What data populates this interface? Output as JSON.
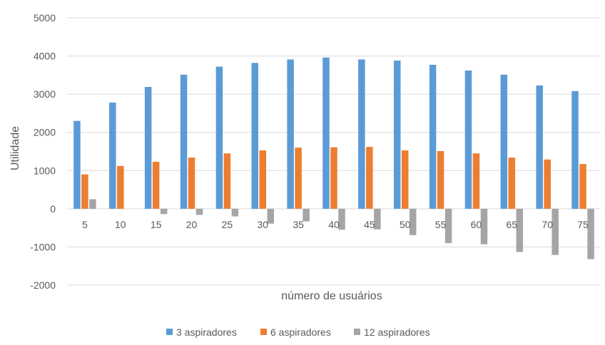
{
  "chart_data": {
    "type": "bar",
    "title": "",
    "xlabel": "número de usuários",
    "ylabel": "Utilidade",
    "categories": [
      "5",
      "10",
      "15",
      "20",
      "25",
      "30",
      "35",
      "40",
      "45",
      "50",
      "55",
      "60",
      "65",
      "70",
      "75"
    ],
    "series": [
      {
        "name": "3 aspiradores",
        "color": "#5b9bd5",
        "values": [
          2300,
          2780,
          3190,
          3510,
          3720,
          3820,
          3910,
          3960,
          3910,
          3880,
          3770,
          3620,
          3510,
          3230,
          3080
        ]
      },
      {
        "name": "6 aspiradores",
        "color": "#ed7d31",
        "values": [
          900,
          1120,
          1230,
          1340,
          1450,
          1530,
          1600,
          1610,
          1620,
          1530,
          1510,
          1450,
          1340,
          1290,
          1170
        ]
      },
      {
        "name": "12 aspiradores",
        "color": "#a5a5a5",
        "values": [
          250,
          0,
          -140,
          -160,
          -200,
          -390,
          -330,
          -550,
          -540,
          -690,
          -900,
          -930,
          -1130,
          -1210,
          -1320
        ]
      }
    ],
    "yticks": [
      -2000,
      -1000,
      0,
      1000,
      2000,
      3000,
      4000,
      5000
    ],
    "ylim": [
      -2000,
      5000
    ],
    "grid": true,
    "legend_position": "bottom"
  }
}
